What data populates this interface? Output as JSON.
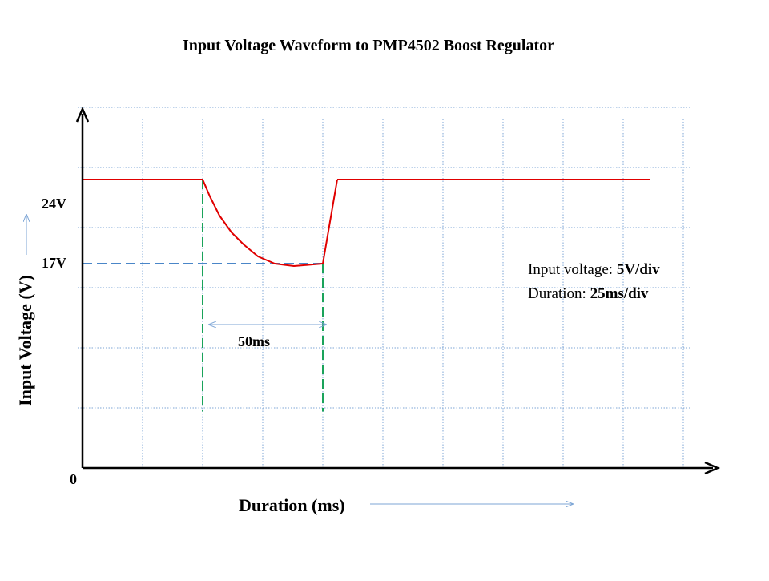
{
  "colors": {
    "grid": "#7ea6d6",
    "waveform": "#e00000",
    "marker_horizontal": "#4a86c8",
    "marker_vertical": "#1aa35a",
    "axis": "#000000"
  },
  "chart_data": {
    "type": "line",
    "title": "Input Voltage Waveform to PMP4502 Boost Regulator",
    "xlabel": "Duration (ms)",
    "ylabel": "Input Voltage (V)",
    "xlim": [
      0,
      250
    ],
    "ylim": [
      0,
      30
    ],
    "grid": true,
    "x_per_div": 25,
    "y_per_div": 5,
    "origin_label": "0",
    "series": [
      {
        "color": "#e00000",
        "x": [
          0,
          50,
          53,
          57,
          62,
          67,
          73,
          80,
          88,
          94,
          100,
          106
        ],
        "y": [
          24,
          24,
          22.6,
          21.0,
          19.6,
          18.6,
          17.6,
          17.0,
          16.8,
          16.9,
          17,
          24
        ]
      },
      {
        "x": [
          106,
          236
        ],
        "y": [
          24,
          24
        ]
      }
    ],
    "y_markers": [
      {
        "label": "24V",
        "value": 24
      },
      {
        "label": "17V",
        "value": 17
      }
    ],
    "annotations": {
      "interval_label": "50ms",
      "interval_start": 50,
      "interval_end": 100,
      "note_line1_prefix": "Input voltage: ",
      "note_line1_value": "5V/div",
      "note_line2_prefix": "Duration: ",
      "note_line2_value": "25ms/div"
    }
  }
}
